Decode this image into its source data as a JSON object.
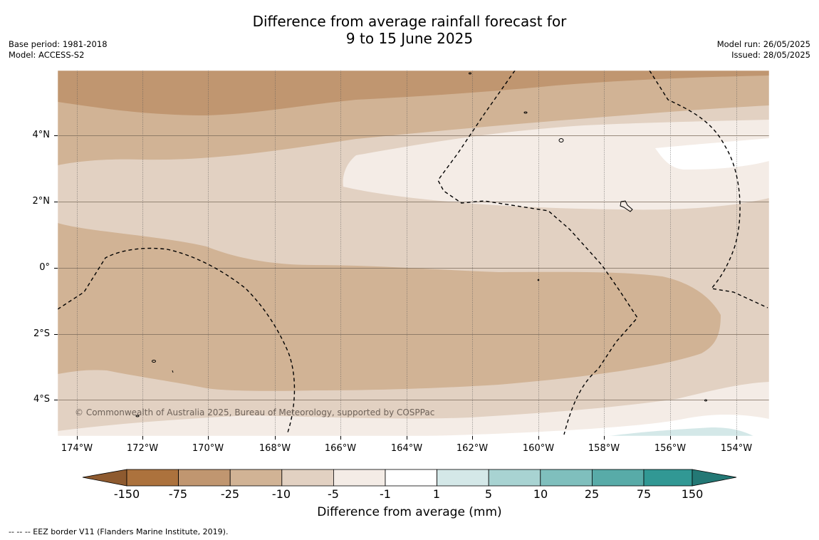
{
  "header": {
    "title_line1": "Difference from average rainfall forecast for",
    "title_line2": "9 to 15 June 2025",
    "base_period": "Base period: 1981-2018",
    "model": "Model: ACCESS-S2",
    "model_run": "Model run: 26/05/2025",
    "issued": "Issued: 28/05/2025"
  },
  "map": {
    "lat_labels": [
      "4°N",
      "2°N",
      "0°",
      "2°S",
      "4°S"
    ],
    "lon_labels": [
      "174°W",
      "172°W",
      "170°W",
      "168°W",
      "166°W",
      "164°W",
      "162°W",
      "160°W",
      "158°W",
      "156°W",
      "154°W"
    ],
    "copyright": "© Commonwealth of Australia 2025, Bureau of Meteorology, supported by COSPPac",
    "anomaly_colors": {
      "dry_strong": "#c09670",
      "dry_moderate": "#d1b395",
      "dry_light": "#e2d1c2",
      "dry_slight": "#f4ece6",
      "neutral": "#ffffff",
      "wet_slight": "#d4e8e8"
    }
  },
  "colorbar": {
    "ticks": [
      "-150",
      "-75",
      "-25",
      "-10",
      "-5",
      "-1",
      "1",
      "5",
      "10",
      "25",
      "75",
      "150"
    ],
    "colors": [
      "#ac723d",
      "#c09670",
      "#d1b395",
      "#e2d1c2",
      "#f4ece6",
      "#ffffff",
      "#d4e8e8",
      "#a8d3d2",
      "#7fbfbd",
      "#58aba8",
      "#319894"
    ],
    "extend_low_color": "#8e5a2f",
    "extend_high_color": "#237875",
    "title": "Difference from average (mm)"
  },
  "footnote": "--  --  -- EEZ border V11 (Flanders Marine Institute, 2019)."
}
